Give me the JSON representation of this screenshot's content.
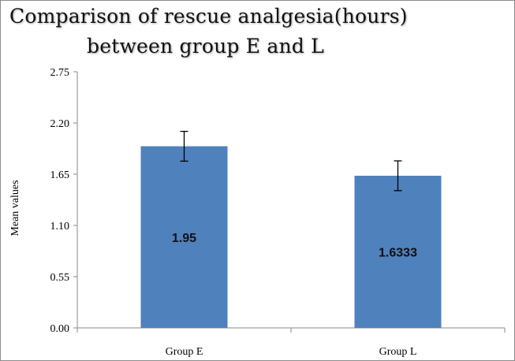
{
  "chart_data": {
    "type": "bar",
    "title_line1": "Comparison of rescue analgesia(hours)",
    "title_line2": "between group E and L",
    "ylabel": "Mean values",
    "xlabel": "",
    "categories": [
      "Group E",
      "Group L"
    ],
    "values": [
      1.95,
      1.6333
    ],
    "data_labels": [
      "1.95",
      "1.6333"
    ],
    "error_bars": [
      0.16,
      0.16
    ],
    "ylim": [
      0,
      2.75
    ],
    "yticks": [
      0.0,
      0.55,
      1.1,
      1.65,
      2.2,
      2.75
    ],
    "ytick_labels": [
      "0.00",
      "0.55",
      "1.10",
      "1.65",
      "2.20",
      "2.75"
    ],
    "grid": false,
    "legend": "none",
    "bar_color": "#4F81BD"
  }
}
